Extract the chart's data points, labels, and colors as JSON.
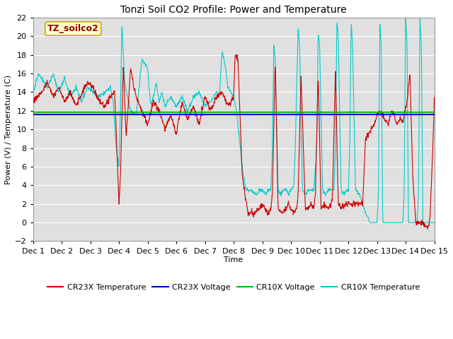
{
  "title": "Tonzi Soil CO2 Profile: Power and Temperature",
  "xlabel": "Time",
  "ylabel": "Power (V) / Temperature (C)",
  "xlim": [
    0,
    14
  ],
  "ylim": [
    -2,
    22
  ],
  "yticks": [
    -2,
    0,
    2,
    4,
    6,
    8,
    10,
    12,
    14,
    16,
    18,
    20,
    22
  ],
  "xtick_labels": [
    "Dec 1",
    "Dec 2",
    "Dec 3",
    "Dec 4",
    "Dec 5",
    "Dec 6",
    "Dec 7",
    "Dec 8",
    "Dec 9",
    "Dec 10",
    "Dec 11",
    "Dec 12",
    "Dec 13",
    "Dec 14",
    "Dec 15"
  ],
  "bg_color": "#e0e0e0",
  "cr23x_voltage_color": "#0000dd",
  "cr10x_voltage_color": "#00bb00",
  "cr23x_temp_color": "#cc0000",
  "cr10x_temp_color": "#00cccc",
  "cr23x_voltage_value": 11.6,
  "cr10x_voltage_value": 11.85,
  "legend_label_box": "TZ_soilco2",
  "legend_box_bg": "#ffffcc",
  "legend_box_border": "#ccaa00",
  "grid_color": "#ffffff",
  "title_fontsize": 10,
  "axis_label_fontsize": 8,
  "tick_fontsize": 8
}
